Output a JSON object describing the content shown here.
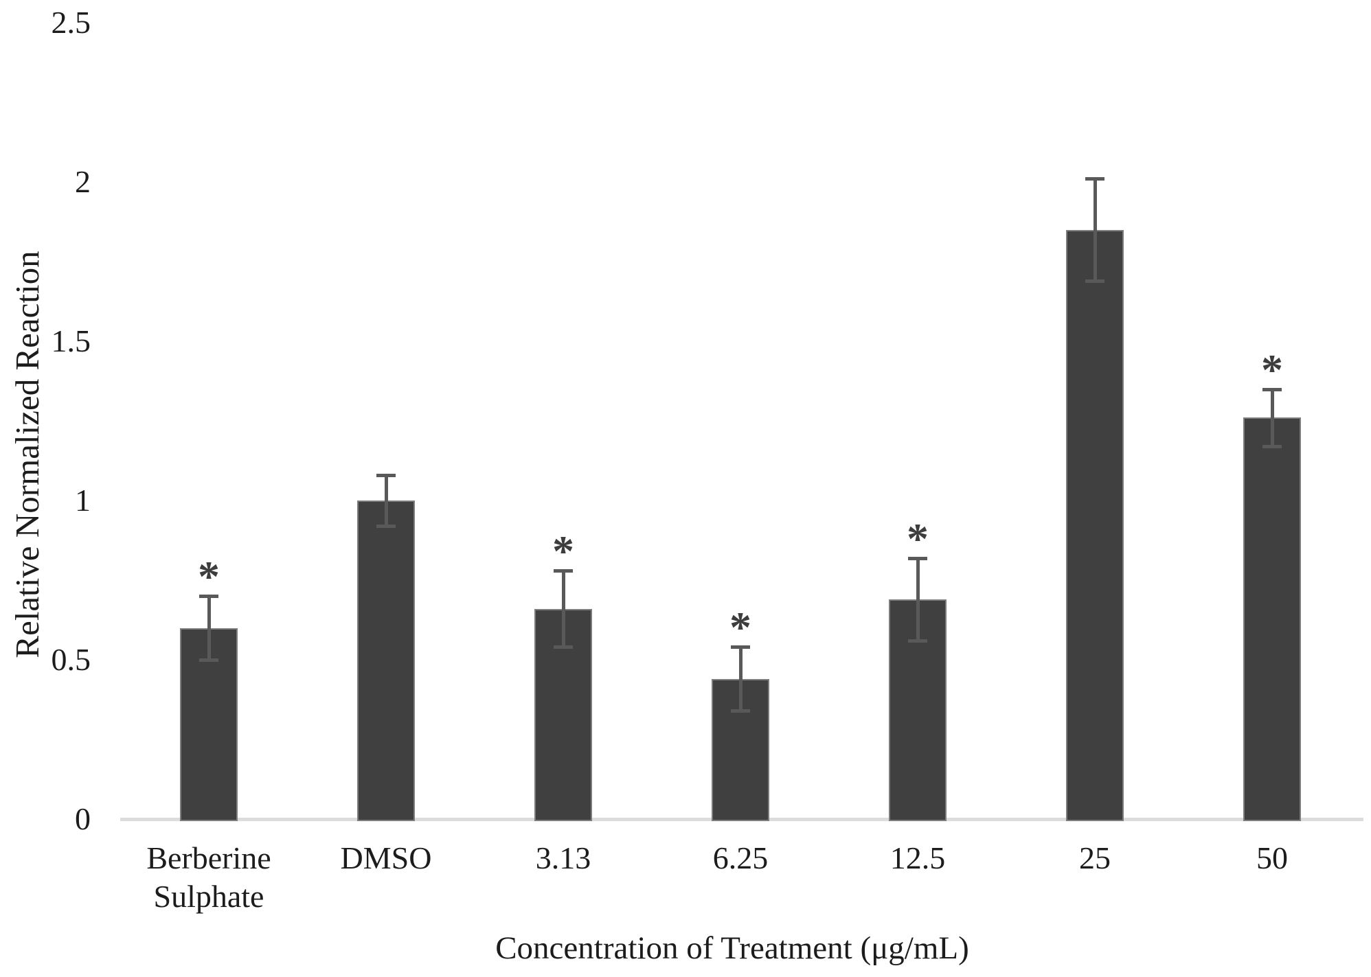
{
  "chart_data": {
    "type": "bar",
    "title": "",
    "xlabel": "Concentration of Treatment (μg/mL)",
    "ylabel": "Relative Normalized Reaction",
    "categories": [
      "Berberine\nSulphate",
      "DMSO",
      "3.13",
      "6.25",
      "12.5",
      "25",
      "50"
    ],
    "values": [
      0.6,
      1.0,
      0.66,
      0.44,
      0.69,
      1.85,
      1.26
    ],
    "errors": [
      0.1,
      0.08,
      0.12,
      0.1,
      0.13,
      0.16,
      0.09
    ],
    "significant": [
      true,
      false,
      true,
      true,
      true,
      false,
      true
    ],
    "significance_marker": "*",
    "ylim": [
      0,
      2.5
    ],
    "yticks": [
      0,
      0.5,
      1,
      1.5,
      2,
      2.5
    ],
    "ytick_labels": [
      "0",
      "0.5",
      "1",
      "1.5",
      "2",
      "2.5"
    ],
    "grid": false,
    "legend": null,
    "colors": {
      "bar_fill": "#404040",
      "bar_border": "#7d7d7d",
      "error_bar": "#595959",
      "axis_line": "#dcdcdc",
      "text": "#1c1c1c",
      "asterisk": "#3d3d3d",
      "background": "#ffffff"
    }
  }
}
